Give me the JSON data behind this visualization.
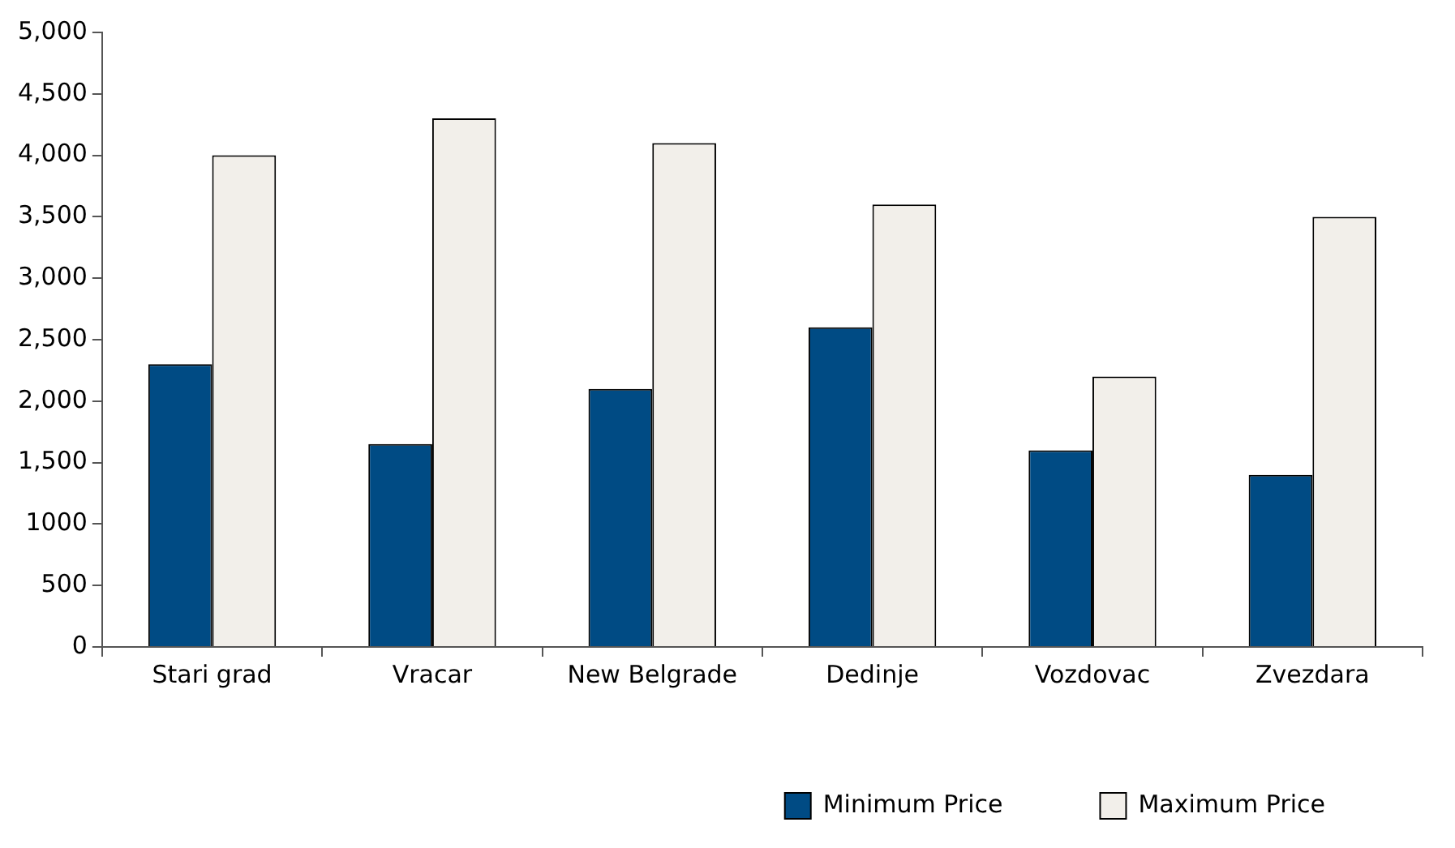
{
  "chart_data": {
    "type": "bar",
    "categories": [
      "Stari grad",
      "Vracar",
      "New Belgrade",
      "Dedinje",
      "Vozdovac",
      "Zvezdara"
    ],
    "series": [
      {
        "name": "Minimum Price",
        "color": "#004b84",
        "values": [
          2300,
          1650,
          2100,
          2600,
          1600,
          1400
        ]
      },
      {
        "name": "Maximum Price",
        "color": "#f2efea",
        "values": [
          4000,
          4300,
          4100,
          3600,
          2200,
          3500
        ]
      }
    ],
    "ylim": [
      0,
      5000
    ],
    "yticks": [
      0,
      500,
      {
        "value": 1000,
        "label": "1000"
      },
      {
        "value": 1500,
        "label": "1,500"
      },
      {
        "value": 2000,
        "label": "2,000"
      },
      {
        "value": 2500,
        "label": "2,500"
      },
      {
        "value": 3000,
        "label": "3,000"
      },
      {
        "value": 3500,
        "label": "3,500"
      },
      {
        "value": 4000,
        "label": "4,000"
      },
      {
        "value": 4500,
        "label": "4,500"
      },
      {
        "value": 5000,
        "label": "5,000"
      }
    ],
    "grid": false,
    "legend": "bottom right"
  }
}
